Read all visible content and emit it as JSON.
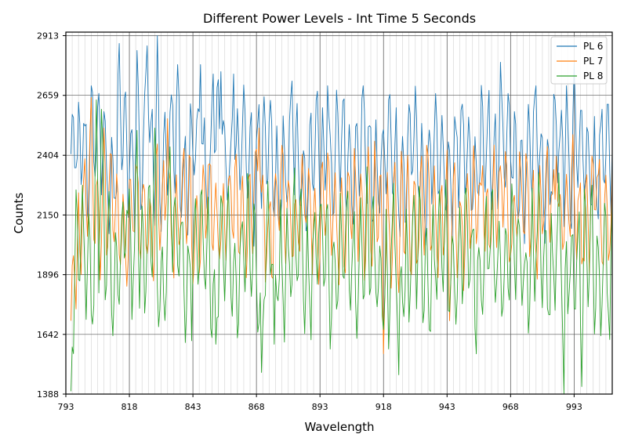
{
  "chart_data": {
    "type": "line",
    "title": "Different Power Levels - Int Time 5 Seconds",
    "xlabel": "Wavelength",
    "ylabel": "Counts",
    "xlim": [
      793,
      1008
    ],
    "ylim": [
      1388,
      2928
    ],
    "x_ticks": [
      793,
      818,
      843,
      868,
      893,
      918,
      943,
      968,
      993
    ],
    "y_ticks": [
      1388,
      1642,
      1896,
      2150,
      2404,
      2659,
      2913
    ],
    "minor_x_grid_step": 2.5,
    "grid": true,
    "legend_position": "top-right",
    "sample_step": 0.5,
    "series": [
      {
        "name": "PL 6",
        "color": "#1f77b4",
        "x_start": 795,
        "mean": 2380,
        "amplitude": 210,
        "noise": 90,
        "min": 1960,
        "max": 2913,
        "highlights": [
          [
            800,
            2540
          ],
          [
            803,
            2700
          ],
          [
            808,
            2590
          ],
          [
            814,
            2880
          ],
          [
            821,
            2850
          ],
          [
            825,
            2870
          ],
          [
            829,
            2913
          ],
          [
            837,
            2790
          ],
          [
            846,
            2790
          ],
          [
            851,
            2750
          ],
          [
            854,
            2760
          ],
          [
            859,
            2750
          ],
          [
            869,
            2620
          ],
          [
            882,
            2720
          ],
          [
            896,
            2700
          ],
          [
            910,
            2700
          ],
          [
            928,
            2620
          ],
          [
            964,
            2800
          ],
          [
            978,
            2700
          ],
          [
            990,
            2700
          ],
          [
            993,
            2790
          ]
        ]
      },
      {
        "name": "PL 7",
        "color": "#ff7f0e",
        "x_start": 795,
        "mean": 2160,
        "amplitude": 190,
        "noise": 85,
        "min": 1560,
        "max": 2650,
        "highlights": [
          [
            795,
            1700
          ],
          [
            797,
            1750
          ],
          [
            803,
            2650
          ],
          [
            808,
            2520
          ],
          [
            833,
            2560
          ],
          [
            869,
            2520
          ],
          [
            912,
            2440
          ],
          [
            918,
            1560
          ],
          [
            924,
            1820
          ],
          [
            944,
            1700
          ],
          [
            957,
            2360
          ],
          [
            966,
            2420
          ],
          [
            986,
            2400
          ],
          [
            1002,
            2310
          ]
        ]
      },
      {
        "name": "PL 8",
        "color": "#2ca02c",
        "x_start": 795,
        "mean": 1970,
        "amplitude": 230,
        "noise": 95,
        "min": 1388,
        "max": 2640,
        "highlights": [
          [
            795,
            1400
          ],
          [
            796,
            1560
          ],
          [
            805,
            2640
          ],
          [
            807,
            2600
          ],
          [
            817,
            2170
          ],
          [
            821,
            2510
          ],
          [
            828,
            2520
          ],
          [
            834,
            2440
          ],
          [
            852,
            1600
          ],
          [
            870,
            1480
          ],
          [
            875,
            1600
          ],
          [
            920,
            1580
          ],
          [
            924,
            1470
          ],
          [
            989,
            1390
          ],
          [
            996,
            1420
          ],
          [
            1007,
            1620
          ]
        ]
      }
    ]
  }
}
